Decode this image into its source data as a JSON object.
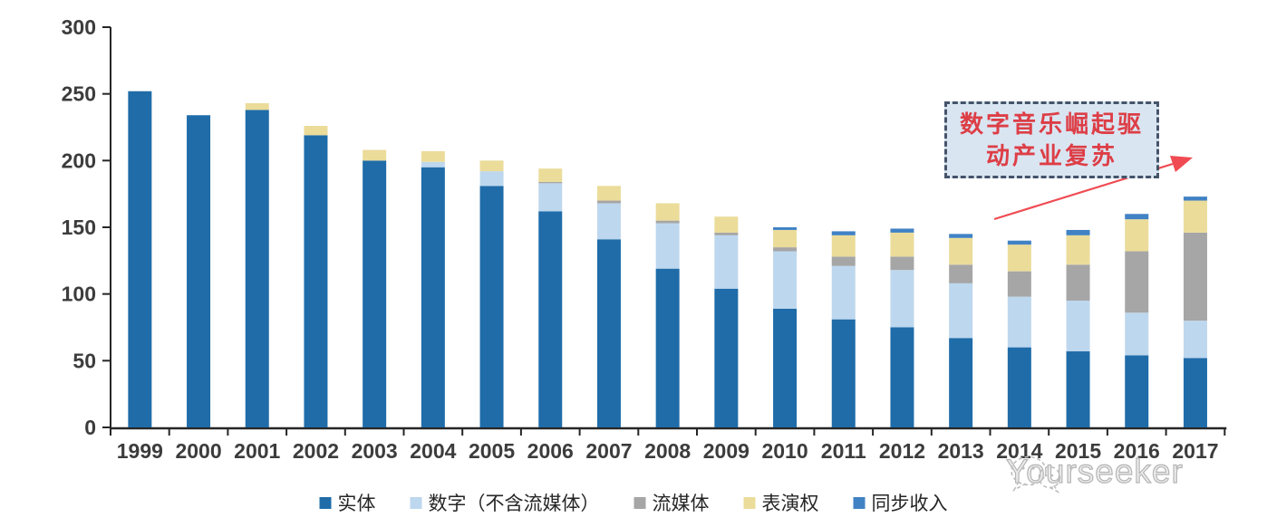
{
  "chart_data": {
    "type": "bar",
    "stacked": true,
    "title": "",
    "xlabel": "",
    "ylabel": "",
    "categories": [
      "1999",
      "2000",
      "2001",
      "2002",
      "2003",
      "2004",
      "2005",
      "2006",
      "2007",
      "2008",
      "2009",
      "2010",
      "2011",
      "2012",
      "2013",
      "2014",
      "2015",
      "2016",
      "2017"
    ],
    "series": [
      {
        "name": "实体",
        "color": "#1F6CA9",
        "values": [
          252,
          234,
          238,
          219,
          200,
          195,
          181,
          162,
          141,
          119,
          104,
          89,
          81,
          75,
          67,
          60,
          57,
          54,
          52
        ]
      },
      {
        "name": "数字（不含流媒体）",
        "color": "#BDD7EE",
        "values": [
          0,
          0,
          0,
          0,
          0,
          4,
          11,
          21,
          27,
          34,
          40,
          43,
          40,
          43,
          41,
          38,
          38,
          32,
          28
        ]
      },
      {
        "name": "流媒体",
        "color": "#A6A6A6",
        "values": [
          0,
          0,
          0,
          0,
          0,
          0,
          0,
          1,
          2,
          2,
          2,
          3,
          7,
          10,
          14,
          19,
          27,
          46,
          66
        ]
      },
      {
        "name": "表演权",
        "color": "#EBDC9A",
        "values": [
          0,
          0,
          5,
          7,
          8,
          8,
          8,
          10,
          11,
          13,
          12,
          13,
          16,
          18,
          20,
          20,
          22,
          24,
          24
        ]
      },
      {
        "name": "同步收入",
        "color": "#4182C4",
        "values": [
          0,
          0,
          0,
          0,
          0,
          0,
          0,
          0,
          0,
          0,
          0,
          2,
          3,
          3,
          3,
          3,
          4,
          4,
          3
        ]
      }
    ],
    "totals": [
      252,
      234,
      243,
      226,
      208,
      207,
      200,
      194,
      181,
      168,
      158,
      150,
      147,
      149,
      145,
      140,
      148,
      160,
      173
    ],
    "ylim": [
      0,
      300
    ],
    "yticks": [
      0,
      50,
      100,
      150,
      200,
      250,
      300
    ],
    "grid": false,
    "legend_position": "bottom"
  },
  "annotation": {
    "line1": "数字音乐崛起驱",
    "line2": "动产业复苏",
    "text_color": "#DD3E46",
    "box_fill": "#DAE5F2",
    "box_border": "#44546A",
    "arrow_color": "#F04B52"
  },
  "watermark": {
    "text": "Yourseeker"
  },
  "axes": {
    "axis_color": "#262626",
    "tick_label_color": "#3C3C3C"
  }
}
